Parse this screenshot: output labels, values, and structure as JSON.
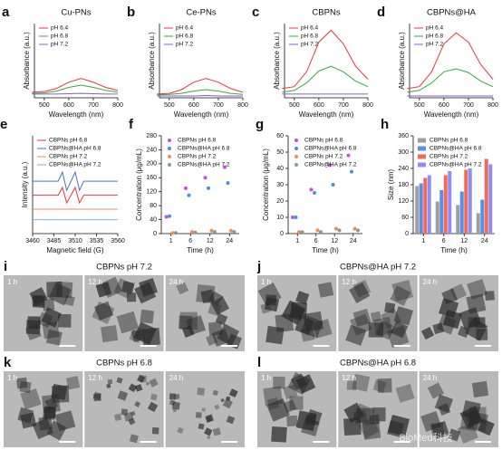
{
  "chart_data": [
    {
      "type": "line",
      "panel": "a",
      "title": "Cu-PNs",
      "x_label": "Wavelength (nm)",
      "y_label": "Absorbance (a.u.)",
      "x": [
        450,
        500,
        550,
        600,
        650,
        700,
        750,
        800
      ],
      "xlim": [
        460,
        800
      ],
      "xticks": [
        500,
        600,
        700,
        800
      ],
      "ylim": [
        0,
        2
      ],
      "legend": "upper left",
      "series": [
        {
          "name": "pH 6.4",
          "color": "#e8393b",
          "values": [
            0.15,
            0.17,
            0.25,
            0.42,
            0.52,
            0.42,
            0.28,
            0.2
          ]
        },
        {
          "name": "pH 6.8",
          "color": "#3aa83a",
          "values": [
            0.12,
            0.13,
            0.18,
            0.28,
            0.34,
            0.28,
            0.2,
            0.15
          ]
        },
        {
          "name": "pH 7.2",
          "color": "#8a5fc8",
          "values": [
            0.1,
            0.1,
            0.1,
            0.11,
            0.12,
            0.11,
            0.1,
            0.1
          ]
        }
      ]
    },
    {
      "type": "line",
      "panel": "b",
      "title": "Ce-PNs",
      "x_label": "Wavelength (nm)",
      "y_label": "Absorbance (a.u.)",
      "x": [
        450,
        500,
        550,
        600,
        650,
        700,
        750,
        800
      ],
      "xlim": [
        460,
        800
      ],
      "xticks": [
        500,
        600,
        700,
        800
      ],
      "ylim": [
        0,
        2
      ],
      "legend": "upper left",
      "series": [
        {
          "name": "pH 6.4",
          "color": "#e8393b",
          "values": [
            0.1,
            0.12,
            0.22,
            0.42,
            0.52,
            0.42,
            0.25,
            0.15
          ]
        },
        {
          "name": "pH 6.8",
          "color": "#3aa83a",
          "values": [
            0.08,
            0.09,
            0.12,
            0.18,
            0.22,
            0.18,
            0.12,
            0.09
          ]
        },
        {
          "name": "pH 7.2",
          "color": "#8a5fc8",
          "values": [
            0.05,
            0.05,
            0.05,
            0.05,
            0.06,
            0.05,
            0.05,
            0.05
          ]
        }
      ]
    },
    {
      "type": "line",
      "panel": "c",
      "title": "CBPNs",
      "x_label": "Wavelength (nm)",
      "y_label": "Absorbance (a.u.)",
      "x": [
        450,
        500,
        550,
        600,
        650,
        700,
        750,
        800
      ],
      "xlim": [
        460,
        800
      ],
      "xticks": [
        500,
        600,
        700,
        800
      ],
      "ylim": [
        0,
        2
      ],
      "legend": "upper left",
      "series": [
        {
          "name": "pH 6.4",
          "color": "#e8393b",
          "values": [
            0.25,
            0.3,
            0.7,
            1.5,
            1.82,
            1.45,
            0.85,
            0.5
          ]
        },
        {
          "name": "pH 6.8",
          "color": "#3aa83a",
          "values": [
            0.15,
            0.2,
            0.4,
            0.72,
            0.85,
            0.7,
            0.45,
            0.3
          ]
        },
        {
          "name": "pH 7.2",
          "color": "#8a5fc8",
          "values": [
            0.1,
            0.1,
            0.1,
            0.1,
            0.1,
            0.1,
            0.1,
            0.1
          ]
        }
      ]
    },
    {
      "type": "line",
      "panel": "d",
      "title": "CBPNs@HA",
      "x_label": "Wavelength (nm)",
      "y_label": "Absorbance (a.u.)",
      "x": [
        450,
        500,
        550,
        600,
        650,
        700,
        750,
        800
      ],
      "xlim": [
        460,
        800
      ],
      "xticks": [
        500,
        600,
        700,
        800
      ],
      "ylim": [
        0,
        2
      ],
      "legend": "upper left",
      "series": [
        {
          "name": "pH 6.4",
          "color": "#e8393b",
          "values": [
            0.25,
            0.3,
            0.7,
            1.45,
            1.75,
            1.5,
            0.9,
            0.5
          ]
        },
        {
          "name": "pH 6.8",
          "color": "#3aa83a",
          "values": [
            0.15,
            0.2,
            0.4,
            0.7,
            0.78,
            0.68,
            0.45,
            0.3
          ]
        },
        {
          "name": "pH 7.2",
          "color": "#8a5fc8",
          "values": [
            0.05,
            0.05,
            0.05,
            0.05,
            0.05,
            0.05,
            0.05,
            0.05
          ]
        }
      ]
    },
    {
      "type": "line",
      "panel": "e",
      "x_label": "Magnetic field (G)",
      "y_label": "Intensity (a.u.)",
      "x": [
        3460,
        3465,
        3470,
        3475,
        3480,
        3485,
        3490,
        3495,
        3500,
        3505,
        3510,
        3515,
        3520,
        3525,
        3530,
        3535,
        3540,
        3545,
        3550,
        3555,
        3560
      ],
      "xlim": [
        3460,
        3560
      ],
      "xticks": [
        3460,
        3485,
        3510,
        3535,
        3560
      ],
      "ylim": [
        0,
        14
      ],
      "legend": "upper left",
      "series": [
        {
          "name": "CBPNs pH 6.8",
          "color": "#e8393b",
          "values": [
            5.5,
            5.5,
            5.5,
            5.5,
            5.5,
            5.5,
            5.5,
            6.6,
            4.4,
            5.5,
            6.6,
            4.4,
            5.5,
            5.5,
            5.5,
            5.5,
            5.5,
            5.5,
            5.5,
            5.5,
            5.5
          ]
        },
        {
          "name": "CBPNs@HA pH 6.8",
          "color": "#4a6fd8",
          "values": [
            7.5,
            7.5,
            7.5,
            7.5,
            7.5,
            7.5,
            7.5,
            8.8,
            6.2,
            7.5,
            8.8,
            6.2,
            7.5,
            7.5,
            7.5,
            7.5,
            7.5,
            7.5,
            7.5,
            7.5,
            7.5
          ]
        },
        {
          "name": "CBPNs pH 7.2",
          "color": "#f08a5d",
          "values": [
            3.5,
            3.5,
            3.5,
            3.5,
            3.5,
            3.5,
            3.5,
            3.5,
            3.5,
            3.5,
            3.5,
            3.5,
            3.5,
            3.5,
            3.5,
            3.5,
            3.5,
            3.5,
            3.5,
            3.5,
            3.5
          ]
        },
        {
          "name": "CBPNs@HA pH 7.2",
          "color": "#7fb2e5",
          "values": [
            2,
            2,
            2,
            2,
            2,
            2,
            2,
            2,
            2,
            2,
            2,
            2,
            2,
            2,
            2,
            2,
            2,
            2,
            2,
            2,
            2
          ]
        }
      ]
    },
    {
      "type": "scatter",
      "panel": "f",
      "x_label": "Time (h)",
      "y_label": "Concentration (μg/mL)",
      "categories": [
        "1",
        "6",
        "12",
        "24"
      ],
      "ylim": [
        0,
        280
      ],
      "yticks": [
        0,
        40,
        80,
        120,
        160,
        200,
        240,
        280
      ],
      "legend": "upper left",
      "series": [
        {
          "name": "CBPNs pH 6.8",
          "color": "#c84fd8",
          "values": [
            48,
            130,
            160,
            190
          ]
        },
        {
          "name": "CBPNs@HA pH 6.8",
          "color": "#4a8fe0",
          "values": [
            50,
            110,
            130,
            145
          ]
        },
        {
          "name": "CBPNs pH 7.2",
          "color": "#f08a5d",
          "values": [
            2,
            5,
            8,
            8
          ]
        },
        {
          "name": "CBPNs@HA pH 7.2",
          "color": "#8a9a8a",
          "values": [
            2,
            3,
            5,
            5
          ]
        }
      ]
    },
    {
      "type": "scatter",
      "panel": "g",
      "x_label": "Time (h)",
      "y_label": "Concentration (μg/mL)",
      "categories": [
        "1",
        "6",
        "12",
        "24"
      ],
      "ylim": [
        0,
        60
      ],
      "yticks": [
        0,
        10,
        20,
        30,
        40,
        50,
        60
      ],
      "legend": "upper left",
      "series": [
        {
          "name": "CBPNs pH 6.8",
          "color": "#c84fd8",
          "values": [
            10,
            27,
            42,
            48
          ]
        },
        {
          "name": "CBPNs@HA pH 6.8",
          "color": "#4a8fe0",
          "values": [
            10,
            25,
            30,
            38
          ]
        },
        {
          "name": "CBPNs pH 7.2",
          "color": "#f08a5d",
          "values": [
            1,
            2,
            3,
            3
          ]
        },
        {
          "name": "CBPNs@HA pH 7.2",
          "color": "#8a9a8a",
          "values": [
            1,
            1,
            2,
            2
          ]
        }
      ]
    },
    {
      "type": "bar",
      "panel": "h",
      "x_label": "Time (h)",
      "y_label": "Size (nm)",
      "categories": [
        "1",
        "6",
        "12",
        "24"
      ],
      "ylim": [
        0,
        360
      ],
      "yticks": [
        0,
        60,
        120,
        180,
        240,
        300,
        360
      ],
      "legend": "upper left",
      "series": [
        {
          "name": "CBPNs pH 6.8",
          "color": "#9e9e9e",
          "values": [
            175,
            118,
            105,
            75
          ]
        },
        {
          "name": "CBPNs@HA pH 6.8",
          "color": "#5b8ee6",
          "values": [
            185,
            160,
            155,
            125
          ]
        },
        {
          "name": "CBPNs pH 7.2",
          "color": "#f26a5a",
          "values": [
            205,
            215,
            235,
            275
          ]
        },
        {
          "name": "CBPNs@HA pH 7.2",
          "color": "#8f8ef0",
          "values": [
            215,
            230,
            240,
            255
          ]
        }
      ]
    }
  ],
  "image_panels": [
    {
      "panel": "i",
      "title": "CBPNs pH 7.2",
      "times": [
        "1 h",
        "12 h",
        "24 h"
      ]
    },
    {
      "panel": "j",
      "title": "CBPNs@HA pH 7.2",
      "times": [
        "1 h",
        "12 h",
        "24 h"
      ]
    },
    {
      "panel": "k",
      "title": "CBPNs pH 6.8",
      "times": [
        "1 h",
        "12 h",
        "24 h"
      ]
    },
    {
      "panel": "l",
      "title": "CBPNs@HA pH 6.8",
      "times": [
        "1 h",
        "12 h",
        "24 h"
      ]
    }
  ],
  "watermark": "BioMed科技"
}
